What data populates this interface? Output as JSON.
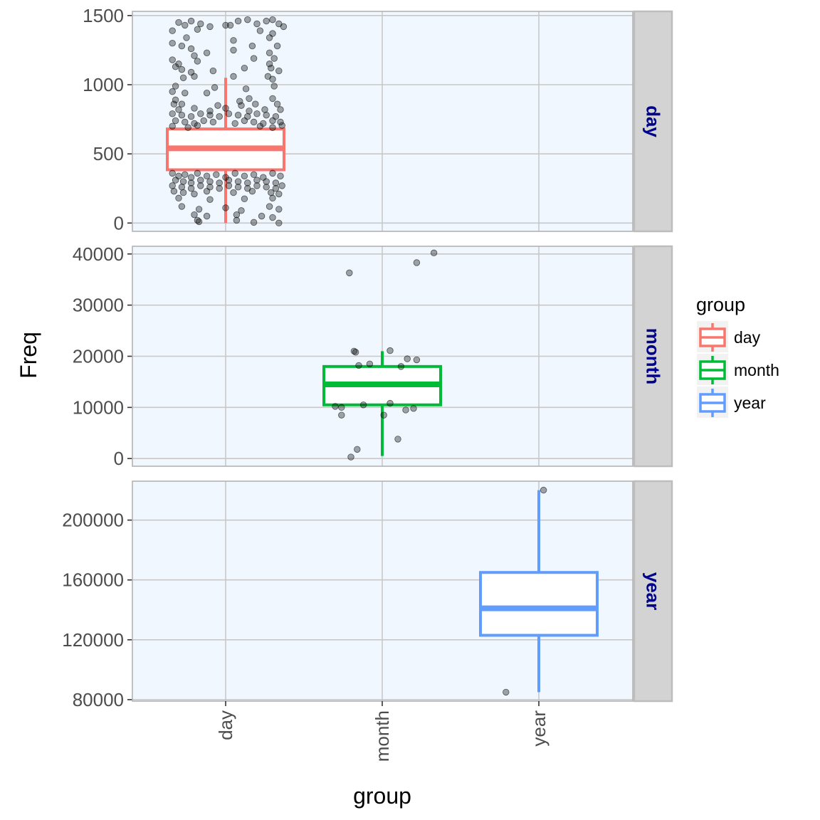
{
  "chart_data": {
    "type": "box",
    "facet_layout": "rows",
    "xlabel": "group",
    "ylabel": "Freq",
    "categories": [
      "day",
      "month",
      "year"
    ],
    "colors": {
      "day": "#f8766d",
      "month": "#00ba38",
      "year": "#619cff"
    },
    "panel_background": "#f0f7ff",
    "grid": true,
    "legend": {
      "title": "group",
      "placement": "right",
      "items": [
        {
          "label": "day",
          "color": "#f8766d"
        },
        {
          "label": "month",
          "color": "#00ba38"
        },
        {
          "label": "year",
          "color": "#619cff"
        }
      ]
    },
    "facets": [
      {
        "strip": "day",
        "category": "day",
        "ylim": [
          -60,
          1530
        ],
        "yticks": [
          0,
          500,
          1000,
          1500
        ],
        "box": {
          "whisker_low": 0,
          "q1": 385,
          "median": 540,
          "q3": 680,
          "whisker_high": 1050
        },
        "points": [
          [
            -0.3,
            1450
          ],
          [
            -0.26,
            1430
          ],
          [
            -0.22,
            1460
          ],
          [
            -0.16,
            1440
          ],
          [
            -0.1,
            1420
          ],
          [
            0.03,
            1430
          ],
          [
            0.08,
            1460
          ],
          [
            0.14,
            1470
          ],
          [
            0.2,
            1440
          ],
          [
            0.26,
            1460
          ],
          [
            0.3,
            1470
          ],
          [
            0.34,
            1440
          ],
          [
            0.37,
            1420
          ],
          [
            -0.34,
            1390
          ],
          [
            -0.18,
            1400
          ],
          [
            0.0,
            1430
          ],
          [
            0.22,
            1390
          ],
          [
            0.3,
            1370
          ],
          [
            -0.25,
            1340
          ],
          [
            0.05,
            1320
          ],
          [
            0.28,
            1340
          ],
          [
            -0.34,
            1300
          ],
          [
            -0.28,
            1280
          ],
          [
            -0.22,
            1260
          ],
          [
            -0.12,
            1230
          ],
          [
            -0.2,
            1210
          ],
          [
            0.05,
            1250
          ],
          [
            0.17,
            1280
          ],
          [
            0.28,
            1230
          ],
          [
            0.33,
            1280
          ],
          [
            -0.34,
            1180
          ],
          [
            -0.3,
            1150
          ],
          [
            -0.18,
            1170
          ],
          [
            0.18,
            1190
          ],
          [
            0.28,
            1150
          ],
          [
            0.31,
            1190
          ],
          [
            -0.32,
            1130
          ],
          [
            -0.28,
            1110
          ],
          [
            -0.08,
            1100
          ],
          [
            -0.22,
            1090
          ],
          [
            0.12,
            1120
          ],
          [
            0.29,
            1120
          ],
          [
            0.34,
            1100
          ],
          [
            -0.27,
            1050
          ],
          [
            -0.2,
            1060
          ],
          [
            0.05,
            1060
          ],
          [
            0.27,
            1060
          ],
          [
            0.3,
            1040
          ],
          [
            -0.32,
            990
          ],
          [
            -0.07,
            980
          ],
          [
            0.13,
            970
          ],
          [
            0.31,
            990
          ],
          [
            -0.34,
            950
          ],
          [
            -0.26,
            940
          ],
          [
            -0.12,
            940
          ],
          [
            -0.32,
            890
          ],
          [
            0.09,
            880
          ],
          [
            0.15,
            900
          ],
          [
            0.3,
            900
          ],
          [
            -0.33,
            860
          ],
          [
            -0.28,
            860
          ],
          [
            -0.05,
            850
          ],
          [
            0.1,
            850
          ],
          [
            0.19,
            860
          ],
          [
            0.33,
            860
          ],
          [
            -0.3,
            820
          ],
          [
            -0.2,
            830
          ],
          [
            -0.1,
            810
          ],
          [
            0.0,
            830
          ],
          [
            0.15,
            810
          ],
          [
            0.25,
            820
          ],
          [
            0.35,
            820
          ],
          [
            -0.34,
            790
          ],
          [
            -0.28,
            780
          ],
          [
            -0.22,
            770
          ],
          [
            -0.16,
            790
          ],
          [
            -0.1,
            780
          ],
          [
            -0.04,
            770
          ],
          [
            0.02,
            790
          ],
          [
            0.08,
            780
          ],
          [
            0.14,
            770
          ],
          [
            0.2,
            790
          ],
          [
            0.26,
            780
          ],
          [
            0.32,
            770
          ],
          [
            -0.32,
            740
          ],
          [
            -0.26,
            730
          ],
          [
            -0.2,
            720
          ],
          [
            -0.14,
            740
          ],
          [
            -0.08,
            730
          ],
          [
            0.06,
            720
          ],
          [
            0.12,
            740
          ],
          [
            0.18,
            730
          ],
          [
            0.24,
            720
          ],
          [
            0.3,
            740
          ],
          [
            0.35,
            730
          ],
          [
            -0.34,
            700
          ],
          [
            -0.24,
            690
          ],
          [
            -0.18,
            705
          ],
          [
            0.22,
            700
          ],
          [
            0.3,
            690
          ],
          [
            0.36,
            705
          ],
          [
            -0.34,
            360
          ],
          [
            -0.3,
            340
          ],
          [
            -0.26,
            350
          ],
          [
            -0.22,
            330
          ],
          [
            -0.18,
            360
          ],
          [
            -0.12,
            340
          ],
          [
            -0.06,
            350
          ],
          [
            0.0,
            330
          ],
          [
            0.06,
            360
          ],
          [
            0.12,
            340
          ],
          [
            0.18,
            350
          ],
          [
            0.24,
            330
          ],
          [
            0.3,
            360
          ],
          [
            0.35,
            340
          ],
          [
            -0.32,
            310
          ],
          [
            -0.27,
            300
          ],
          [
            -0.22,
            290
          ],
          [
            -0.16,
            310
          ],
          [
            -0.1,
            300
          ],
          [
            -0.04,
            290
          ],
          [
            0.02,
            310
          ],
          [
            0.08,
            300
          ],
          [
            0.14,
            290
          ],
          [
            0.2,
            310
          ],
          [
            0.26,
            300
          ],
          [
            0.32,
            290
          ],
          [
            -0.34,
            270
          ],
          [
            -0.28,
            260
          ],
          [
            -0.22,
            250
          ],
          [
            -0.16,
            270
          ],
          [
            -0.1,
            260
          ],
          [
            -0.04,
            250
          ],
          [
            0.02,
            270
          ],
          [
            0.08,
            260
          ],
          [
            0.14,
            250
          ],
          [
            0.2,
            270
          ],
          [
            0.26,
            260
          ],
          [
            0.32,
            250
          ],
          [
            0.36,
            270
          ],
          [
            -0.33,
            230
          ],
          [
            -0.27,
            220
          ],
          [
            -0.2,
            210
          ],
          [
            -0.12,
            230
          ],
          [
            0.05,
            220
          ],
          [
            0.17,
            230
          ],
          [
            0.29,
            220
          ],
          [
            0.34,
            210
          ],
          [
            -0.3,
            180
          ],
          [
            -0.1,
            170
          ],
          [
            0.12,
            175
          ],
          [
            0.3,
            180
          ],
          [
            -0.28,
            120
          ],
          [
            -0.17,
            100
          ],
          [
            0.0,
            110
          ],
          [
            0.1,
            90
          ],
          [
            0.28,
            120
          ],
          [
            0.34,
            100
          ],
          [
            -0.2,
            60
          ],
          [
            -0.12,
            50
          ],
          [
            0.07,
            60
          ],
          [
            0.23,
            50
          ],
          [
            0.3,
            40
          ],
          [
            -0.18,
            20
          ],
          [
            -0.17,
            10
          ],
          [
            0.07,
            20
          ],
          [
            0.18,
            5
          ],
          [
            0.34,
            0
          ]
        ]
      },
      {
        "strip": "month",
        "category": "month",
        "ylim": [
          -1500,
          41500
        ],
        "yticks": [
          0,
          10000,
          20000,
          30000,
          40000
        ],
        "box": {
          "whisker_low": 500,
          "q1": 10500,
          "median": 14500,
          "q3": 18000,
          "whisker_high": 21000
        },
        "points": [
          [
            -0.21,
            36300
          ],
          [
            0.22,
            38300
          ],
          [
            0.33,
            40200
          ],
          [
            -0.18,
            21000
          ],
          [
            -0.17,
            20800
          ],
          [
            0.05,
            21100
          ],
          [
            -0.08,
            18500
          ],
          [
            0.16,
            19500
          ],
          [
            0.22,
            19300
          ],
          [
            -0.15,
            18200
          ],
          [
            0.12,
            18000
          ],
          [
            -0.3,
            10200
          ],
          [
            -0.26,
            10000
          ],
          [
            -0.12,
            10500
          ],
          [
            0.05,
            10800
          ],
          [
            0.15,
            9500
          ],
          [
            0.2,
            9800
          ],
          [
            -0.26,
            8500
          ],
          [
            0.01,
            8500
          ],
          [
            0.1,
            3800
          ],
          [
            -0.16,
            1800
          ],
          [
            -0.2,
            300
          ]
        ]
      },
      {
        "strip": "year",
        "category": "year",
        "ylim": [
          79000,
          226000
        ],
        "yticks": [
          80000,
          120000,
          160000,
          200000
        ],
        "box": {
          "whisker_low": 85000,
          "q1": 123000,
          "median": 141000,
          "q3": 165000,
          "whisker_high": 220000
        },
        "points": [
          [
            0.03,
            220000
          ],
          [
            -0.21,
            85000
          ]
        ]
      }
    ]
  }
}
